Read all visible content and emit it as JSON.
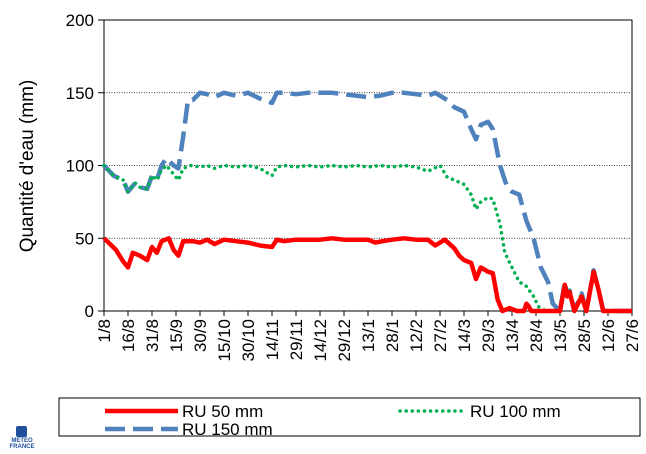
{
  "chart_data": {
    "type": "line",
    "title": "",
    "xlabel": "",
    "ylabel": "Quantité d'eau (mm)",
    "ylim": [
      0,
      200
    ],
    "yticks": [
      "0",
      "50",
      "100",
      "150",
      "200"
    ],
    "grid": "horizontal dotted",
    "legend_position": "bottom",
    "categories": [
      "1/8",
      "16/8",
      "31/8",
      "15/9",
      "30/9",
      "15/10",
      "30/10",
      "14/11",
      "29/11",
      "14/12",
      "29/12",
      "13/1",
      "28/1",
      "12/2",
      "27/2",
      "14/3",
      "29/3",
      "13/4",
      "28/4",
      "13/5",
      "28/5",
      "12/6",
      "27/6"
    ],
    "series": [
      {
        "name": "RU 50 mm",
        "color": "#ff0000",
        "style": "solid",
        "values": [
          50,
          33,
          38,
          48,
          47,
          48,
          47,
          46,
          49,
          49,
          49,
          48,
          49,
          49,
          48,
          32,
          28,
          1,
          1,
          0,
          15,
          20,
          0
        ],
        "points": [
          [
            0,
            50
          ],
          [
            0.5,
            42
          ],
          [
            0.8,
            34
          ],
          [
            1,
            30
          ],
          [
            1.2,
            40
          ],
          [
            1.5,
            38
          ],
          [
            1.8,
            35
          ],
          [
            2,
            44
          ],
          [
            2.2,
            40
          ],
          [
            2.4,
            48
          ],
          [
            2.7,
            50
          ],
          [
            2.9,
            42
          ],
          [
            3.1,
            38
          ],
          [
            3.3,
            48
          ],
          [
            3.7,
            48
          ],
          [
            4,
            47
          ],
          [
            4.3,
            49
          ],
          [
            4.6,
            46
          ],
          [
            5,
            49
          ],
          [
            5.5,
            48
          ],
          [
            6,
            47
          ],
          [
            6.5,
            45
          ],
          [
            7,
            44
          ],
          [
            7.2,
            49
          ],
          [
            7.5,
            48
          ],
          [
            8,
            49
          ],
          [
            8.5,
            49
          ],
          [
            9,
            49
          ],
          [
            9.5,
            50
          ],
          [
            10,
            49
          ],
          [
            10.5,
            49
          ],
          [
            11,
            49
          ],
          [
            11.3,
            47
          ],
          [
            11.6,
            48
          ],
          [
            12,
            49
          ],
          [
            12.5,
            50
          ],
          [
            13,
            49
          ],
          [
            13.5,
            49
          ],
          [
            13.8,
            45
          ],
          [
            14.2,
            49
          ],
          [
            14.6,
            43
          ],
          [
            14.8,
            38
          ],
          [
            15,
            35
          ],
          [
            15.3,
            33
          ],
          [
            15.5,
            22
          ],
          [
            15.7,
            30
          ],
          [
            16,
            27
          ],
          [
            16.2,
            26
          ],
          [
            16.4,
            8
          ],
          [
            16.6,
            0
          ],
          [
            16.9,
            2
          ],
          [
            17.2,
            0
          ],
          [
            17.5,
            0
          ],
          [
            17.6,
            5
          ],
          [
            17.7,
            3
          ],
          [
            17.8,
            0
          ],
          [
            18.5,
            0
          ],
          [
            19,
            0
          ],
          [
            19.2,
            18
          ],
          [
            19.3,
            10
          ],
          [
            19.4,
            13
          ],
          [
            19.6,
            0
          ],
          [
            19.9,
            10
          ],
          [
            20.1,
            0
          ],
          [
            20.4,
            27
          ],
          [
            20.6,
            15
          ],
          [
            20.8,
            0
          ],
          [
            22,
            0
          ]
        ]
      },
      {
        "name": "RU 100 mm",
        "color": "#00b050",
        "style": "dotted",
        "values": [
          100,
          85,
          93,
          98,
          98,
          99,
          98,
          95,
          99,
          99,
          99,
          99,
          99,
          99,
          99,
          88,
          78,
          30,
          5,
          0,
          15,
          20,
          0
        ],
        "points": [
          [
            0,
            100
          ],
          [
            0.4,
            93
          ],
          [
            0.8,
            90
          ],
          [
            1,
            82
          ],
          [
            1.3,
            88
          ],
          [
            1.5,
            85
          ],
          [
            1.8,
            84
          ],
          [
            2,
            93
          ],
          [
            2.2,
            90
          ],
          [
            2.4,
            97
          ],
          [
            2.6,
            100
          ],
          [
            2.9,
            94
          ],
          [
            3.1,
            90
          ],
          [
            3.3,
            98
          ],
          [
            3.6,
            100
          ],
          [
            4,
            99
          ],
          [
            4.3,
            100
          ],
          [
            4.6,
            98
          ],
          [
            5,
            100
          ],
          [
            5.5,
            99
          ],
          [
            6,
            100
          ],
          [
            6.5,
            98
          ],
          [
            7,
            93
          ],
          [
            7.2,
            99
          ],
          [
            7.5,
            100
          ],
          [
            8,
            99
          ],
          [
            8.5,
            100
          ],
          [
            9,
            99
          ],
          [
            9.5,
            100
          ],
          [
            10,
            99
          ],
          [
            10.5,
            100
          ],
          [
            11,
            99
          ],
          [
            11.5,
            100
          ],
          [
            12,
            99
          ],
          [
            12.5,
            100
          ],
          [
            13,
            99
          ],
          [
            13.5,
            96
          ],
          [
            14,
            100
          ],
          [
            14.3,
            92
          ],
          [
            14.6,
            90
          ],
          [
            15,
            87
          ],
          [
            15.3,
            80
          ],
          [
            15.5,
            70
          ],
          [
            15.7,
            75
          ],
          [
            16,
            78
          ],
          [
            16.2,
            77
          ],
          [
            16.5,
            60
          ],
          [
            16.7,
            40
          ],
          [
            17,
            30
          ],
          [
            17.3,
            20
          ],
          [
            17.6,
            17
          ],
          [
            17.9,
            10
          ],
          [
            18.1,
            3
          ],
          [
            18.4,
            0
          ],
          [
            19,
            0
          ],
          [
            19.2,
            20
          ],
          [
            19.3,
            10
          ],
          [
            19.4,
            14
          ],
          [
            19.6,
            0
          ],
          [
            19.9,
            12
          ],
          [
            20.1,
            0
          ],
          [
            20.4,
            28
          ],
          [
            20.6,
            15
          ],
          [
            20.8,
            0
          ],
          [
            22,
            0
          ]
        ]
      },
      {
        "name": "RU 150 mm",
        "color": "#4f81bd",
        "style": "dashed",
        "values": [
          100,
          85,
          93,
          106,
          150,
          149,
          149,
          145,
          150,
          150,
          150,
          148,
          150,
          149,
          150,
          135,
          125,
          80,
          35,
          5,
          15,
          20,
          0
        ],
        "points": [
          [
            0,
            100
          ],
          [
            0.4,
            93
          ],
          [
            0.8,
            90
          ],
          [
            1,
            82
          ],
          [
            1.3,
            88
          ],
          [
            1.5,
            85
          ],
          [
            1.8,
            84
          ],
          [
            2,
            93
          ],
          [
            2.2,
            90
          ],
          [
            2.4,
            100
          ],
          [
            2.6,
            105
          ],
          [
            2.9,
            100
          ],
          [
            3.1,
            98
          ],
          [
            3.3,
            120
          ],
          [
            3.5,
            145
          ],
          [
            3.7,
            145
          ],
          [
            4,
            150
          ],
          [
            4.3,
            149
          ],
          [
            4.6,
            147
          ],
          [
            5,
            150
          ],
          [
            5.5,
            148
          ],
          [
            6,
            150
          ],
          [
            6.5,
            146
          ],
          [
            7,
            143
          ],
          [
            7.2,
            150
          ],
          [
            7.5,
            150
          ],
          [
            8,
            149
          ],
          [
            8.5,
            150
          ],
          [
            9,
            150
          ],
          [
            9.5,
            150
          ],
          [
            10,
            149
          ],
          [
            10.5,
            148
          ],
          [
            11,
            147
          ],
          [
            11.5,
            148
          ],
          [
            12,
            150
          ],
          [
            12.5,
            150
          ],
          [
            13,
            149
          ],
          [
            13.5,
            148
          ],
          [
            13.8,
            150
          ],
          [
            14,
            148
          ],
          [
            14.3,
            145
          ],
          [
            14.6,
            140
          ],
          [
            15,
            137
          ],
          [
            15.3,
            125
          ],
          [
            15.5,
            118
          ],
          [
            15.7,
            128
          ],
          [
            16,
            130
          ],
          [
            16.2,
            125
          ],
          [
            16.5,
            100
          ],
          [
            16.8,
            85
          ],
          [
            17,
            82
          ],
          [
            17.3,
            80
          ],
          [
            17.6,
            62
          ],
          [
            17.9,
            50
          ],
          [
            18.2,
            30
          ],
          [
            18.5,
            20
          ],
          [
            18.7,
            5
          ],
          [
            19,
            0
          ],
          [
            19.2,
            20
          ],
          [
            19.3,
            10
          ],
          [
            19.4,
            14
          ],
          [
            19.6,
            0
          ],
          [
            19.9,
            12
          ],
          [
            20.1,
            0
          ],
          [
            20.4,
            28
          ],
          [
            20.6,
            15
          ],
          [
            20.8,
            0
          ],
          [
            22,
            0
          ]
        ]
      }
    ]
  },
  "logo": {
    "text": "METEO\nFRANCE"
  }
}
